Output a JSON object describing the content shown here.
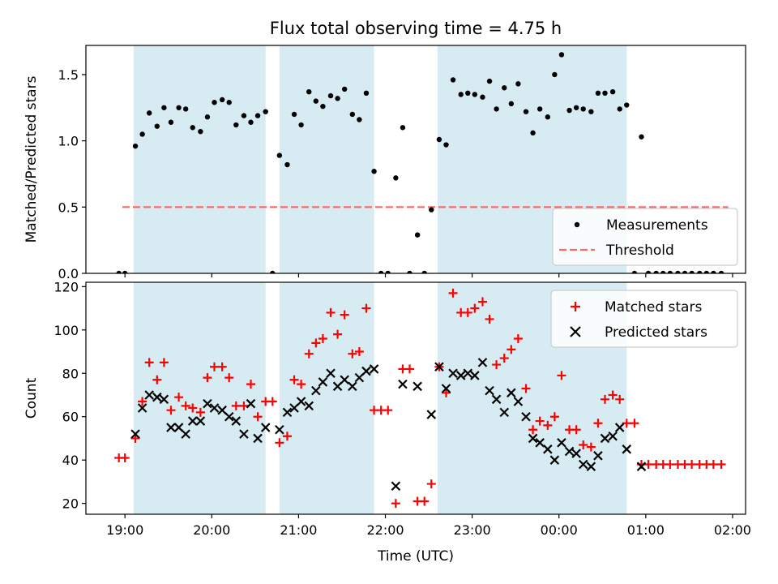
{
  "title": "Flux total observing time = 4.75 h",
  "colors": {
    "shade": "#add8e6",
    "measurement": "#000000",
    "threshold": "#ff6666",
    "matched": "#ff0000",
    "predicted": "#000000"
  },
  "chart_data": [
    {
      "type": "scatter",
      "ylabel": "Matched/Predicted stars",
      "xlim": [
        18.55,
        26.15
      ],
      "ylim": [
        0,
        1.72
      ],
      "yticks": [
        0.0,
        0.5,
        1.0,
        1.5
      ],
      "ytick_labels": [
        "0.0",
        "0.5",
        "1.0",
        "1.5"
      ],
      "legend": {
        "placement": "lower right",
        "entries": [
          "Measurements",
          "Threshold"
        ]
      },
      "threshold": {
        "name": "Threshold",
        "value": 0.5,
        "x_range": [
          18.97,
          25.95
        ]
      },
      "shaded_intervals": [
        [
          19.1,
          20.62
        ],
        [
          20.78,
          21.87
        ],
        [
          22.6,
          24.78
        ]
      ],
      "series": [
        {
          "name": "Measurements",
          "marker": "dot",
          "x": [
            18.93,
            19.0,
            19.12,
            19.2,
            19.28,
            19.37,
            19.45,
            19.53,
            19.62,
            19.7,
            19.78,
            19.87,
            19.95,
            20.03,
            20.12,
            20.2,
            20.28,
            20.37,
            20.45,
            20.53,
            20.62,
            20.7,
            20.78,
            20.87,
            20.95,
            21.03,
            21.12,
            21.2,
            21.28,
            21.37,
            21.45,
            21.53,
            21.62,
            21.7,
            21.78,
            21.87,
            21.95,
            22.03,
            22.12,
            22.2,
            22.28,
            22.37,
            22.45,
            22.53,
            22.62,
            22.7,
            22.78,
            22.87,
            22.95,
            23.03,
            23.12,
            23.2,
            23.28,
            23.37,
            23.45,
            23.53,
            23.62,
            23.7,
            23.78,
            23.87,
            23.95,
            24.03,
            24.12,
            24.2,
            24.28,
            24.37,
            24.45,
            24.53,
            24.62,
            24.7,
            24.78,
            24.87,
            24.95,
            25.03,
            25.12,
            25.2,
            25.28,
            25.37,
            25.45,
            25.53,
            25.62,
            25.7,
            25.78,
            25.87
          ],
          "y": [
            0.0,
            0.0,
            0.96,
            1.05,
            1.21,
            1.11,
            1.25,
            1.14,
            1.25,
            1.24,
            1.1,
            1.07,
            1.18,
            1.29,
            1.31,
            1.29,
            1.12,
            1.19,
            1.14,
            1.19,
            1.22,
            0.0,
            0.89,
            0.82,
            1.2,
            1.12,
            1.37,
            1.3,
            1.26,
            1.34,
            1.32,
            1.39,
            1.2,
            1.16,
            1.36,
            0.77,
            0.0,
            0.0,
            0.72,
            1.1,
            0.0,
            0.29,
            0.0,
            0.48,
            1.01,
            0.97,
            1.46,
            1.35,
            1.36,
            1.35,
            1.33,
            1.45,
            1.24,
            1.4,
            1.28,
            1.43,
            1.22,
            1.06,
            1.24,
            1.18,
            1.5,
            1.65,
            1.23,
            1.25,
            1.24,
            1.22,
            1.36,
            1.36,
            1.37,
            1.24,
            1.27,
            0.0,
            1.03,
            0.0,
            0.0,
            0.0,
            0.0,
            0.0,
            0.0,
            0.0,
            0.0,
            0.0,
            0.0,
            0.0
          ]
        }
      ]
    },
    {
      "type": "scatter",
      "xlabel": "Time (UTC)",
      "ylabel": "Count",
      "xlim": [
        18.55,
        26.15
      ],
      "ylim": [
        15,
        122
      ],
      "yticks": [
        20,
        40,
        60,
        80,
        100,
        120
      ],
      "ytick_labels": [
        "20",
        "40",
        "60",
        "80",
        "100",
        "120"
      ],
      "xticks": [
        19,
        20,
        21,
        22,
        23,
        24,
        25,
        26
      ],
      "xtick_labels": [
        "19:00",
        "20:00",
        "21:00",
        "22:00",
        "23:00",
        "00:00",
        "01:00",
        "02:00"
      ],
      "legend": {
        "placement": "upper right",
        "entries": [
          "Matched stars",
          "Predicted stars"
        ]
      },
      "shaded_intervals": [
        [
          19.1,
          20.62
        ],
        [
          20.78,
          21.87
        ],
        [
          22.6,
          24.78
        ]
      ],
      "series": [
        {
          "name": "Matched stars",
          "marker": "plus",
          "x": [
            18.93,
            19.0,
            19.12,
            19.2,
            19.28,
            19.37,
            19.45,
            19.53,
            19.62,
            19.7,
            19.78,
            19.87,
            19.95,
            20.03,
            20.12,
            20.2,
            20.28,
            20.37,
            20.45,
            20.53,
            20.62,
            20.7,
            20.78,
            20.87,
            20.95,
            21.03,
            21.12,
            21.2,
            21.28,
            21.37,
            21.45,
            21.53,
            21.62,
            21.7,
            21.78,
            21.87,
            21.95,
            22.03,
            22.12,
            22.2,
            22.28,
            22.37,
            22.45,
            22.53,
            22.62,
            22.7,
            22.78,
            22.87,
            22.95,
            23.03,
            23.12,
            23.2,
            23.28,
            23.37,
            23.45,
            23.53,
            23.62,
            23.7,
            23.78,
            23.87,
            23.95,
            24.03,
            24.12,
            24.2,
            24.28,
            24.37,
            24.45,
            24.53,
            24.62,
            24.7,
            24.78,
            24.87,
            24.95,
            25.03,
            25.12,
            25.2,
            25.28,
            25.37,
            25.45,
            25.53,
            25.62,
            25.7,
            25.78,
            25.87
          ],
          "y": [
            41,
            41,
            50,
            67,
            85,
            77,
            85,
            63,
            69,
            65,
            64,
            62,
            78,
            83,
            83,
            78,
            65,
            65,
            75,
            60,
            67,
            67,
            48,
            51,
            77,
            75,
            89,
            94,
            96,
            108,
            98,
            107,
            89,
            90,
            110,
            63,
            63,
            63,
            20,
            82,
            82,
            21,
            21,
            29,
            83,
            71,
            117,
            108,
            108,
            110,
            113,
            105,
            84,
            87,
            91,
            96,
            73,
            54,
            58,
            56,
            60,
            79,
            54,
            54,
            47,
            46,
            57,
            68,
            70,
            68,
            57,
            57,
            38,
            38,
            38,
            38,
            38,
            38,
            38,
            38,
            38,
            38,
            38,
            38
          ]
        },
        {
          "name": "Predicted stars",
          "marker": "x",
          "x": [
            19.12,
            19.2,
            19.28,
            19.37,
            19.45,
            19.53,
            19.62,
            19.7,
            19.78,
            19.87,
            19.95,
            20.03,
            20.12,
            20.2,
            20.28,
            20.37,
            20.45,
            20.53,
            20.62,
            20.78,
            20.87,
            20.95,
            21.03,
            21.12,
            21.2,
            21.28,
            21.37,
            21.45,
            21.53,
            21.62,
            21.7,
            21.78,
            21.87,
            22.12,
            22.2,
            22.37,
            22.53,
            22.62,
            22.7,
            22.78,
            22.87,
            22.95,
            23.03,
            23.12,
            23.2,
            23.28,
            23.37,
            23.45,
            23.53,
            23.62,
            23.7,
            23.78,
            23.87,
            23.95,
            24.03,
            24.12,
            24.2,
            24.28,
            24.37,
            24.45,
            24.53,
            24.62,
            24.7,
            24.78,
            24.95
          ],
          "y": [
            52,
            64,
            70,
            69,
            68,
            55,
            55,
            52,
            58,
            58,
            66,
            64,
            63,
            60,
            58,
            52,
            66,
            50,
            55,
            54,
            62,
            64,
            67,
            65,
            72,
            76,
            80,
            74,
            77,
            74,
            78,
            81,
            82,
            28,
            75,
            74,
            61,
            83,
            73,
            80,
            79,
            80,
            79,
            85,
            72,
            68,
            62,
            71,
            67,
            60,
            50,
            48,
            45,
            40,
            48,
            44,
            43,
            38,
            37,
            42,
            50,
            51,
            55,
            45,
            37
          ]
        }
      ]
    }
  ]
}
